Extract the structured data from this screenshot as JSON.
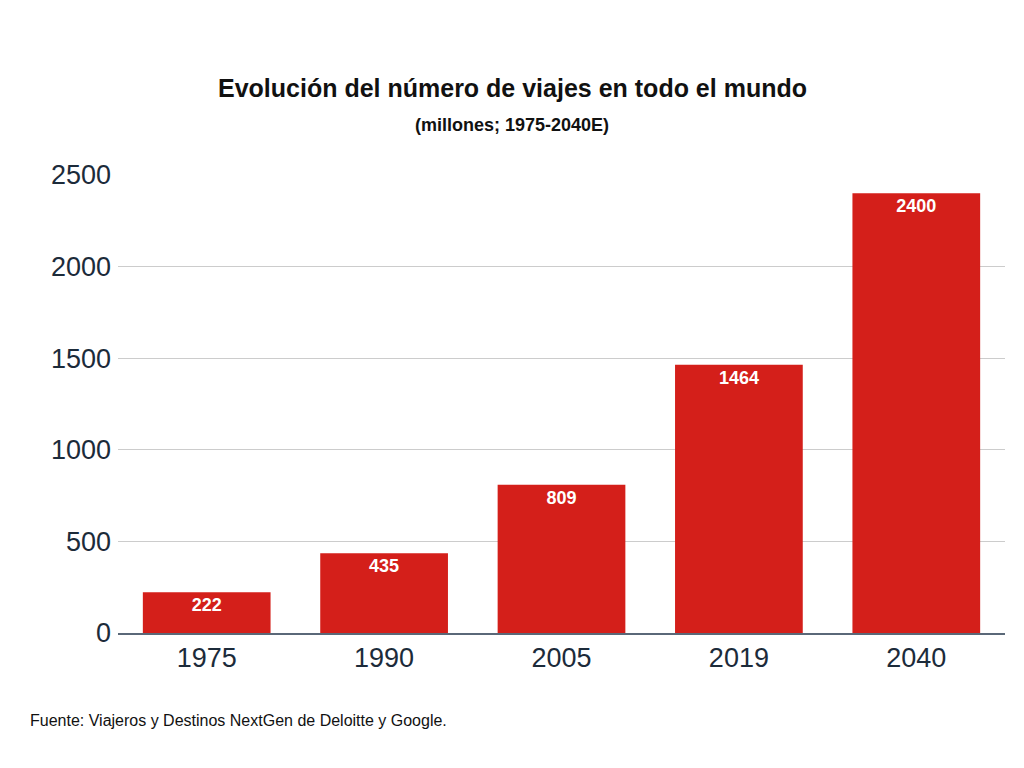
{
  "chart_data": {
    "type": "bar",
    "title": "Evolución del número de viajes en todo el mundo",
    "subtitle": "(millones; 1975-2040E)",
    "source": "Fuente: Viajeros y Destinos NextGen de Deloitte y Google.",
    "categories": [
      "1975",
      "1990",
      "2005",
      "2019",
      "2040"
    ],
    "values": [
      222,
      435,
      809,
      1464,
      2400
    ],
    "color": "#d41f1a",
    "ylim": [
      0,
      2500
    ],
    "yticks": [
      0,
      500,
      1000,
      1500,
      2000,
      2500
    ],
    "grid": true,
    "data_labels": true
  }
}
